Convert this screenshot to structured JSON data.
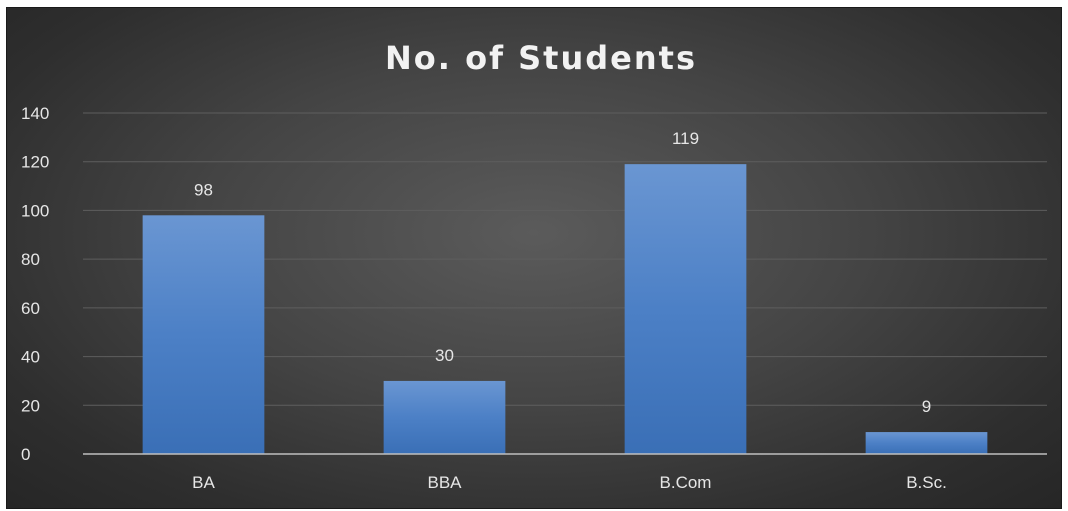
{
  "chart_data": {
    "type": "bar",
    "title": "No. of Students",
    "categories": [
      "BA",
      "BBA",
      "B.Com",
      "B.Sc."
    ],
    "values": [
      98,
      30,
      119,
      9
    ],
    "ylim": [
      0,
      140
    ],
    "yticks": [
      0,
      20,
      40,
      60,
      80,
      100,
      120,
      140
    ],
    "grid": true,
    "data_labels": true,
    "legend": "none",
    "bar_color": "#4a7fc4",
    "background_color": "#404040"
  }
}
